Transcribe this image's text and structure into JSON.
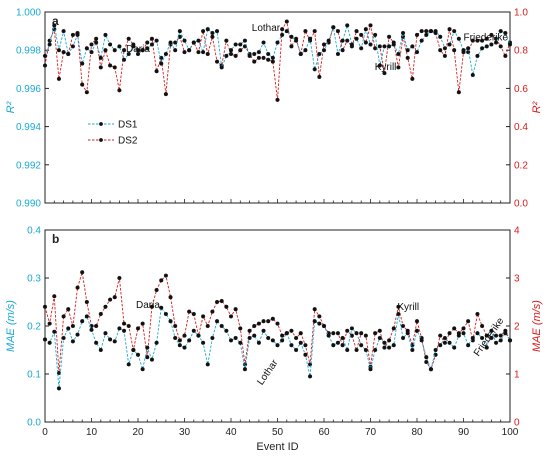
{
  "chart_data": [
    {
      "type": "line",
      "panel_label": "a",
      "xlim": [
        0,
        100
      ],
      "ylim_left": [
        0.99,
        1.0
      ],
      "ylim_right": [
        0.0,
        1.0
      ],
      "ylabel_left": "R²",
      "ylabel_right": "R²",
      "left_ticks": [
        "0.990",
        "0.992",
        "0.994",
        "0.996",
        "0.998",
        "1.000"
      ],
      "right_ticks": [
        "0.0",
        "0.2",
        "0.4",
        "0.6",
        "0.8",
        "1.0"
      ],
      "left_color": "#19a9d4",
      "right_color": "#d81c1c",
      "legend_placement": "upper-left",
      "series": [
        {
          "name": "DS1",
          "axis": "left",
          "color": "#19a9d4",
          "values": [
            0.9977,
            0.9983,
            0.9993,
            0.998,
            0.999,
            0.9978,
            0.9982,
            0.9988,
            0.9973,
            0.9981,
            0.9979,
            0.9984,
            0.9976,
            0.9988,
            0.9983,
            0.998,
            0.9982,
            0.9975,
            0.9978,
            0.9982,
            0.9978,
            0.998,
            0.9981,
            0.9983,
            0.9985,
            0.9973,
            0.9978,
            0.9984,
            0.998,
            0.999,
            0.9985,
            0.998,
            0.9984,
            0.9985,
            0.9979,
            0.9991,
            0.9989,
            0.999,
            0.9971,
            0.9977,
            0.998,
            0.9983,
            0.9983,
            0.9985,
            0.9977,
            0.9978,
            0.9979,
            0.9984,
            0.9978,
            0.9976,
            0.9984,
            0.9988,
            0.999,
            0.9987,
            0.9985,
            0.9978,
            0.998,
            0.9986,
            0.997,
            0.9978,
            0.998,
            0.9985,
            0.9992,
            0.9978,
            0.9985,
            0.9993,
            0.9983,
            0.9986,
            0.9981,
            0.9991,
            0.9983,
            0.9988,
            0.9972,
            0.9982,
            0.9982,
            0.9983,
            0.9978,
            0.9989,
            0.998,
            0.9982,
            0.9979,
            0.9985,
            0.9988,
            0.999,
            0.999,
            0.9987,
            0.9981,
            0.9983,
            0.999,
            0.9986,
            0.998,
            0.9981,
            0.9967,
            0.9977,
            0.9981,
            0.9982,
            0.9983,
            0.9984,
            0.999,
            0.9989,
            0.9983
          ]
        },
        {
          "name": "DS2",
          "axis": "right",
          "color": "#d81c1c",
          "values": [
            0.72,
            0.85,
            0.91,
            0.65,
            0.79,
            0.78,
            0.88,
            0.89,
            0.62,
            0.58,
            0.83,
            0.86,
            0.71,
            0.8,
            0.72,
            0.71,
            0.59,
            0.8,
            0.86,
            0.83,
            0.8,
            0.8,
            0.84,
            0.86,
            0.69,
            0.76,
            0.57,
            0.83,
            0.84,
            0.87,
            0.79,
            0.8,
            0.84,
            0.79,
            0.9,
            0.78,
            0.87,
            0.74,
            0.72,
            0.85,
            0.78,
            0.77,
            0.8,
            0.82,
            0.78,
            0.74,
            0.76,
            0.76,
            0.75,
            0.74,
            0.54,
            0.91,
            0.95,
            0.82,
            0.86,
            0.78,
            0.9,
            0.85,
            0.9,
            0.66,
            0.83,
            0.84,
            0.92,
            0.9,
            0.8,
            0.85,
            0.82,
            0.9,
            0.88,
            0.84,
            0.93,
            0.81,
            0.82,
            0.68,
            0.87,
            0.84,
            0.71,
            0.87,
            0.76,
            0.65,
            0.88,
            0.9,
            0.9,
            0.9,
            0.89,
            0.8,
            0.77,
            0.91,
            0.8,
            0.58,
            0.79,
            0.79,
            0.85,
            0.85,
            0.85,
            0.86,
            0.88,
            0.86,
            0.82,
            0.77,
            0.84
          ]
        }
      ],
      "annotations": [
        {
          "text": "Daria",
          "x": 26
        },
        {
          "text": "Lothar",
          "x": 51
        },
        {
          "text": "Kyrill",
          "x": 76
        },
        {
          "text": "Friederike",
          "x": 100
        }
      ]
    },
    {
      "type": "line",
      "panel_label": "b",
      "xlim": [
        0,
        100
      ],
      "ylim_left": [
        0.0,
        0.4
      ],
      "ylim_right": [
        0,
        4
      ],
      "xlabel": "Event ID",
      "ylabel_left": "MAE (m/s)",
      "ylabel_right": "MAE (m/s)",
      "left_ticks": [
        "0.0",
        "0.1",
        "0.2",
        "0.3",
        "0.4"
      ],
      "right_ticks": [
        "0",
        "1",
        "2",
        "3",
        "4"
      ],
      "x_ticks": [
        "0",
        "10",
        "20",
        "30",
        "40",
        "50",
        "60",
        "70",
        "80",
        "90",
        "100"
      ],
      "left_color": "#19a9d4",
      "right_color": "#d81c1c",
      "series": [
        {
          "name": "DS1",
          "axis": "left",
          "color": "#19a9d4",
          "values": [
            0.172,
            0.165,
            0.188,
            0.07,
            0.175,
            0.195,
            0.168,
            0.182,
            0.21,
            0.22,
            0.192,
            0.165,
            0.15,
            0.185,
            0.172,
            0.168,
            0.195,
            0.19,
            0.12,
            0.15,
            0.14,
            0.11,
            0.155,
            0.13,
            0.165,
            0.238,
            0.225,
            0.21,
            0.175,
            0.16,
            0.155,
            0.17,
            0.19,
            0.18,
            0.165,
            0.12,
            0.175,
            0.21,
            0.2,
            0.19,
            0.17,
            0.175,
            0.165,
            0.11,
            0.175,
            0.18,
            0.165,
            0.19,
            0.175,
            0.17,
            0.16,
            0.17,
            0.185,
            0.16,
            0.15,
            0.165,
            0.14,
            0.095,
            0.21,
            0.205,
            0.2,
            0.18,
            0.16,
            0.165,
            0.175,
            0.15,
            0.195,
            0.185,
            0.16,
            0.15,
            0.11,
            0.15,
            0.175,
            0.165,
            0.155,
            0.16,
            0.225,
            0.175,
            0.185,
            0.15,
            0.19,
            0.17,
            0.135,
            0.11,
            0.15,
            0.16,
            0.175,
            0.165,
            0.155,
            0.18,
            0.185,
            0.16,
            0.175,
            0.185,
            0.175,
            0.155,
            0.19,
            0.165,
            0.17,
            0.185,
            0.17
          ]
        },
        {
          "name": "DS2",
          "axis": "right",
          "color": "#d81c1c",
          "values": [
            2.4,
            2.05,
            2.62,
            1.02,
            2.2,
            2.35,
            2.0,
            2.8,
            3.12,
            2.5,
            2.0,
            2.0,
            2.25,
            2.4,
            2.55,
            2.6,
            3.0,
            2.05,
            2.0,
            1.5,
            1.95,
            2.05,
            1.35,
            2.4,
            2.75,
            2.95,
            3.05,
            2.6,
            2.0,
            1.7,
            1.8,
            2.3,
            2.25,
            1.8,
            2.2,
            2.0,
            2.3,
            2.5,
            2.52,
            2.4,
            2.2,
            2.35,
            1.95,
            1.2,
            1.9,
            2.0,
            2.05,
            2.1,
            2.1,
            2.15,
            2.05,
            1.8,
            1.85,
            1.9,
            1.75,
            1.85,
            1.6,
            1.2,
            2.35,
            2.2,
            2.0,
            1.85,
            1.85,
            1.85,
            1.6,
            1.9,
            1.8,
            1.5,
            1.85,
            1.8,
            1.15,
            1.85,
            1.9,
            1.55,
            1.7,
            1.95,
            2.4,
            2.0,
            1.9,
            1.6,
            2.1,
            1.75,
            1.25,
            1.1,
            1.4,
            1.8,
            1.65,
            1.85,
            1.95,
            1.85,
            1.95,
            2.1,
            1.7,
            2.25,
            2.0,
            1.8,
            1.75,
            1.8,
            1.8,
            1.9,
            1.7
          ]
        }
      ],
      "annotations": [
        {
          "text": "Daria",
          "x": 26
        },
        {
          "text": "Lothar",
          "x": 51
        },
        {
          "text": "Kyrill",
          "x": 76
        },
        {
          "text": "Friederike",
          "x": 100
        }
      ]
    }
  ]
}
